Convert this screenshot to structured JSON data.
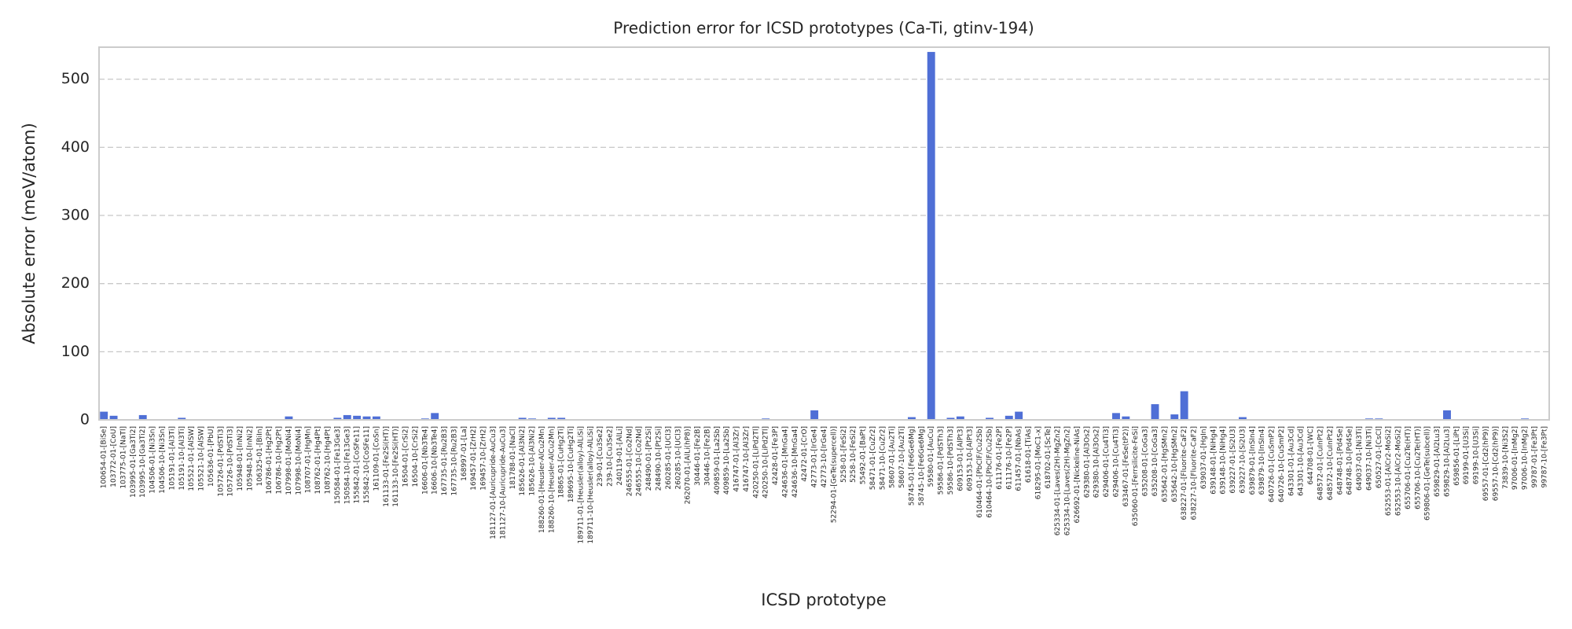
{
  "chart_data": {
    "type": "bar",
    "title": "Prediction error for ICSD prototypes (Ca-Ti, gtinv-194)",
    "x_label": "ICSD prototype",
    "y_label": "Absolute error (meV/atom)",
    "color": "#4f6fd6",
    "grid": true,
    "ylim": [
      0,
      547
    ],
    "yticks": [
      0,
      100,
      200,
      300,
      400,
      500
    ],
    "categories": [
      "100654-01-[BiSe]",
      "103772-01-[CoU]",
      "103775-01-[NaTl]",
      "103995-01-[Ga3Ti2]",
      "103995-10-[Ga3Ti2]",
      "104506-01-[Ni3Sn]",
      "104506-10-[Ni3Sn]",
      "105191-01-[Al3Ti]",
      "105191-10-[Al3Ti]",
      "105521-01-[AlSW]",
      "105521-10-[AlSW]",
      "105636-01-[PbU]",
      "105726-01-[PdSTi3]",
      "105726-10-[PdSTi3]",
      "105948-01-[InNi2]",
      "105948-10-[InNi2]",
      "106325-01-[BiIn]",
      "106786-01-[Hg2Pt]",
      "106786-10-[Hg2Pt]",
      "107998-01-[MoNi4]",
      "107998-10-[MoNi4]",
      "108707-01-[HgMn]",
      "108762-01-[Hg4Pt]",
      "108762-10-[Hg4Pt]",
      "150584-01-[Fe13Ge3]",
      "150584-10-[Fe13Ge3]",
      "155842-01-[CoSFe11]",
      "155842-10-[CoSFe11]",
      "161109-01-[CoSn]",
      "161133-01-[Fe2Si(HT)]",
      "161133-10-[Fe2Si(HT)]",
      "16504-01-[CrSi2]",
      "16504-10-[CrSi2]",
      "16606-01-[Nb3Te4]",
      "16606-10-[Nb3Te4]",
      "167735-01-[Ru2B3]",
      "167735-10-[Ru2B3]",
      "168997-01-[La]",
      "169457-01-[ZrH2]",
      "169457-10-[ZrH2]",
      "181127-01-[Auricupride-AuCu3]",
      "181127-10-[Auricupride-AuCu3]",
      "181788-01-[NaCl]",
      "185626-01-[Al3Ni2]",
      "185626-10-[Al3Ni2]",
      "188260-01-[Heusler-AlCu2Mn]",
      "188260-10-[Heusler-AlCu2Mn]",
      "18865-01-[CuHg2Ti]",
      "189695-10-[CuHg2Ti]",
      "189711-01-[Heusler(alloy)-AlLiSi]",
      "189711-10-[Heusler(alloy)-AlLiSi]",
      "239-01-[Cu3Se2]",
      "239-10-[Cu3Se2]",
      "240119-01-[AlLi]",
      "246555-01-[Co2Nd]",
      "246555-10-[Co2Nd]",
      "248490-01-[Pt2Si]",
      "248490-10-[Pt2Si]",
      "260285-01-[UCl3]",
      "260285-10-[UCl3]",
      "262070-01-[AlLi(hP8)]",
      "30446-01-[Fe2B]",
      "30446-10-[Fe2B]",
      "409859-01-[La2Sb]",
      "409859-10-[La2Sb]",
      "416747-01-[Al3Zr]",
      "416747-10-[Al3Zr]",
      "420250-01-[LiPd2Tl]",
      "420250-10-[LiPd2Tl]",
      "42428-01-[Fe3P]",
      "424636-01-[MnGa4]",
      "424636-10-[MnGa4]",
      "42472-01-[CrO]",
      "42773-01-[IrGe4]",
      "42773-10-[IrGe4]",
      "52294-01-[GeTe(supercell)]",
      "5258-01-[FeSi2]",
      "5258-10-[FeSi2]",
      "55492-01-[BaPt]",
      "58471-01-[CuZr2]",
      "58471-10-[CuZr2]",
      "58607-01-[Au2Ti]",
      "58607-10-[Au2Ti]",
      "58745-01-[Fe6Ge6Mg]",
      "58745-10-[Fe6Ge6Mg]",
      "59580-01-[AuCu]",
      "59586-01-[PdSTh3]",
      "59586-10-[PdSTh3]",
      "609153-01-[AlPt3]",
      "609153-10-[AlPt3]",
      "610464-01-[PbClF/Cu2Sb]",
      "610464-10-[PbClF/Cu2Sb]",
      "611176-01-[Fe2P]",
      "611176-10-[Fe2P]",
      "611457-01-[NbAs]",
      "61618-01-[TiAs]",
      "618295-01-[MoC1-x]",
      "618702-01-[ScTe]",
      "625334-01-[Laves(2H)-MgZn2]",
      "625334-10-[Laves(2H)-MgZn2]",
      "626692-01-[Nickeline-NiAs]",
      "629380-01-[Al3Os2]",
      "629380-10-[Al3Os2]",
      "629406-01-[Cu4Ti3]",
      "629406-10-[Cu4Ti3]",
      "633467-01-[FeSe(tP2)]",
      "635060-01-[Ferrsilicite-FeSi]",
      "635208-01-[CoGa3]",
      "635208-10-[CoGa3]",
      "635642-01-[HgSMn2]",
      "635642-10-[HgSMn2]",
      "638227-01-[Fluorite-CaF2]",
      "638227-10-[Fluorite-CaF2]",
      "639037-01-[HgIn]",
      "639148-01-[NiHg4]",
      "639148-10-[NiHg4]",
      "639227-01-[Si2U3]",
      "639227-10-[Si2U3]",
      "639879-01-[InSIn4]",
      "639879-10-[InSIn4]",
      "640726-01-[CuSmP2]",
      "640726-10-[CuSmP2]",
      "643301-01-[Au3Cd]",
      "643301-10-[Au3Cd]",
      "644708-01-[WC]",
      "648572-01-[CuInPt2]",
      "648572-10-[CuInPt2]",
      "648748-01-[Pd4Se]",
      "648748-10-[Pd4Se]",
      "649037-01-[Ni3Ti]",
      "649037-10-[Ni3Ti]",
      "650527-01-[CsCl]",
      "652553-01-[AlCr2-MoSi2]",
      "652553-10-[AlCr2-MoSi2]",
      "655706-01-[Cu2Te(HT)]",
      "655706-10-[Cu2Te(HT)]",
      "659806-01-[GeTe(subcell)]",
      "659829-01-[Al2Lu3]",
      "659829-10-[Al2Lu3]",
      "659856-01-[LiPt]",
      "69199-01-[U3Si]",
      "69199-10-[U3Si]",
      "69557-01-[Cd2(hP9)]",
      "69557-10-[Cd2(hP9)]",
      "73839-10-[Ni3S2]",
      "97006-01-[InMg2]",
      "97006-10-[InMg2]",
      "99787-01-[Fe3Pt]",
      "99787-10-[Fe3Pt]"
    ],
    "values": [
      12,
      6,
      0,
      0,
      7,
      0,
      0,
      0,
      3,
      0,
      0,
      0,
      0,
      0,
      0,
      0,
      0,
      0,
      0,
      5,
      0,
      0,
      0,
      0,
      3,
      7,
      6,
      5,
      5,
      0,
      0,
      0,
      0,
      2,
      10,
      0,
      0,
      0,
      0,
      0,
      0,
      0,
      0,
      3,
      2,
      0,
      3,
      3,
      0,
      0,
      0,
      0,
      0,
      0,
      0,
      0,
      0,
      0,
      0,
      0,
      0,
      0,
      0,
      0,
      0,
      0,
      0,
      0,
      2,
      0,
      0,
      0,
      0,
      14,
      0,
      0,
      0,
      0,
      0,
      0,
      0,
      0,
      0,
      4,
      0,
      540,
      0,
      3,
      5,
      0,
      0,
      3,
      0,
      6,
      12,
      0,
      0,
      0,
      0,
      0,
      0,
      0,
      0,
      0,
      10,
      5,
      0,
      0,
      23,
      0,
      8,
      42,
      0,
      0,
      0,
      0,
      0,
      4,
      0,
      0,
      0,
      0,
      0,
      0,
      0,
      0,
      0,
      0,
      0,
      0,
      2,
      2,
      0,
      0,
      0,
      0,
      0,
      0,
      14,
      0,
      0,
      0,
      0,
      0,
      0,
      0,
      2,
      0,
      0
    ]
  }
}
